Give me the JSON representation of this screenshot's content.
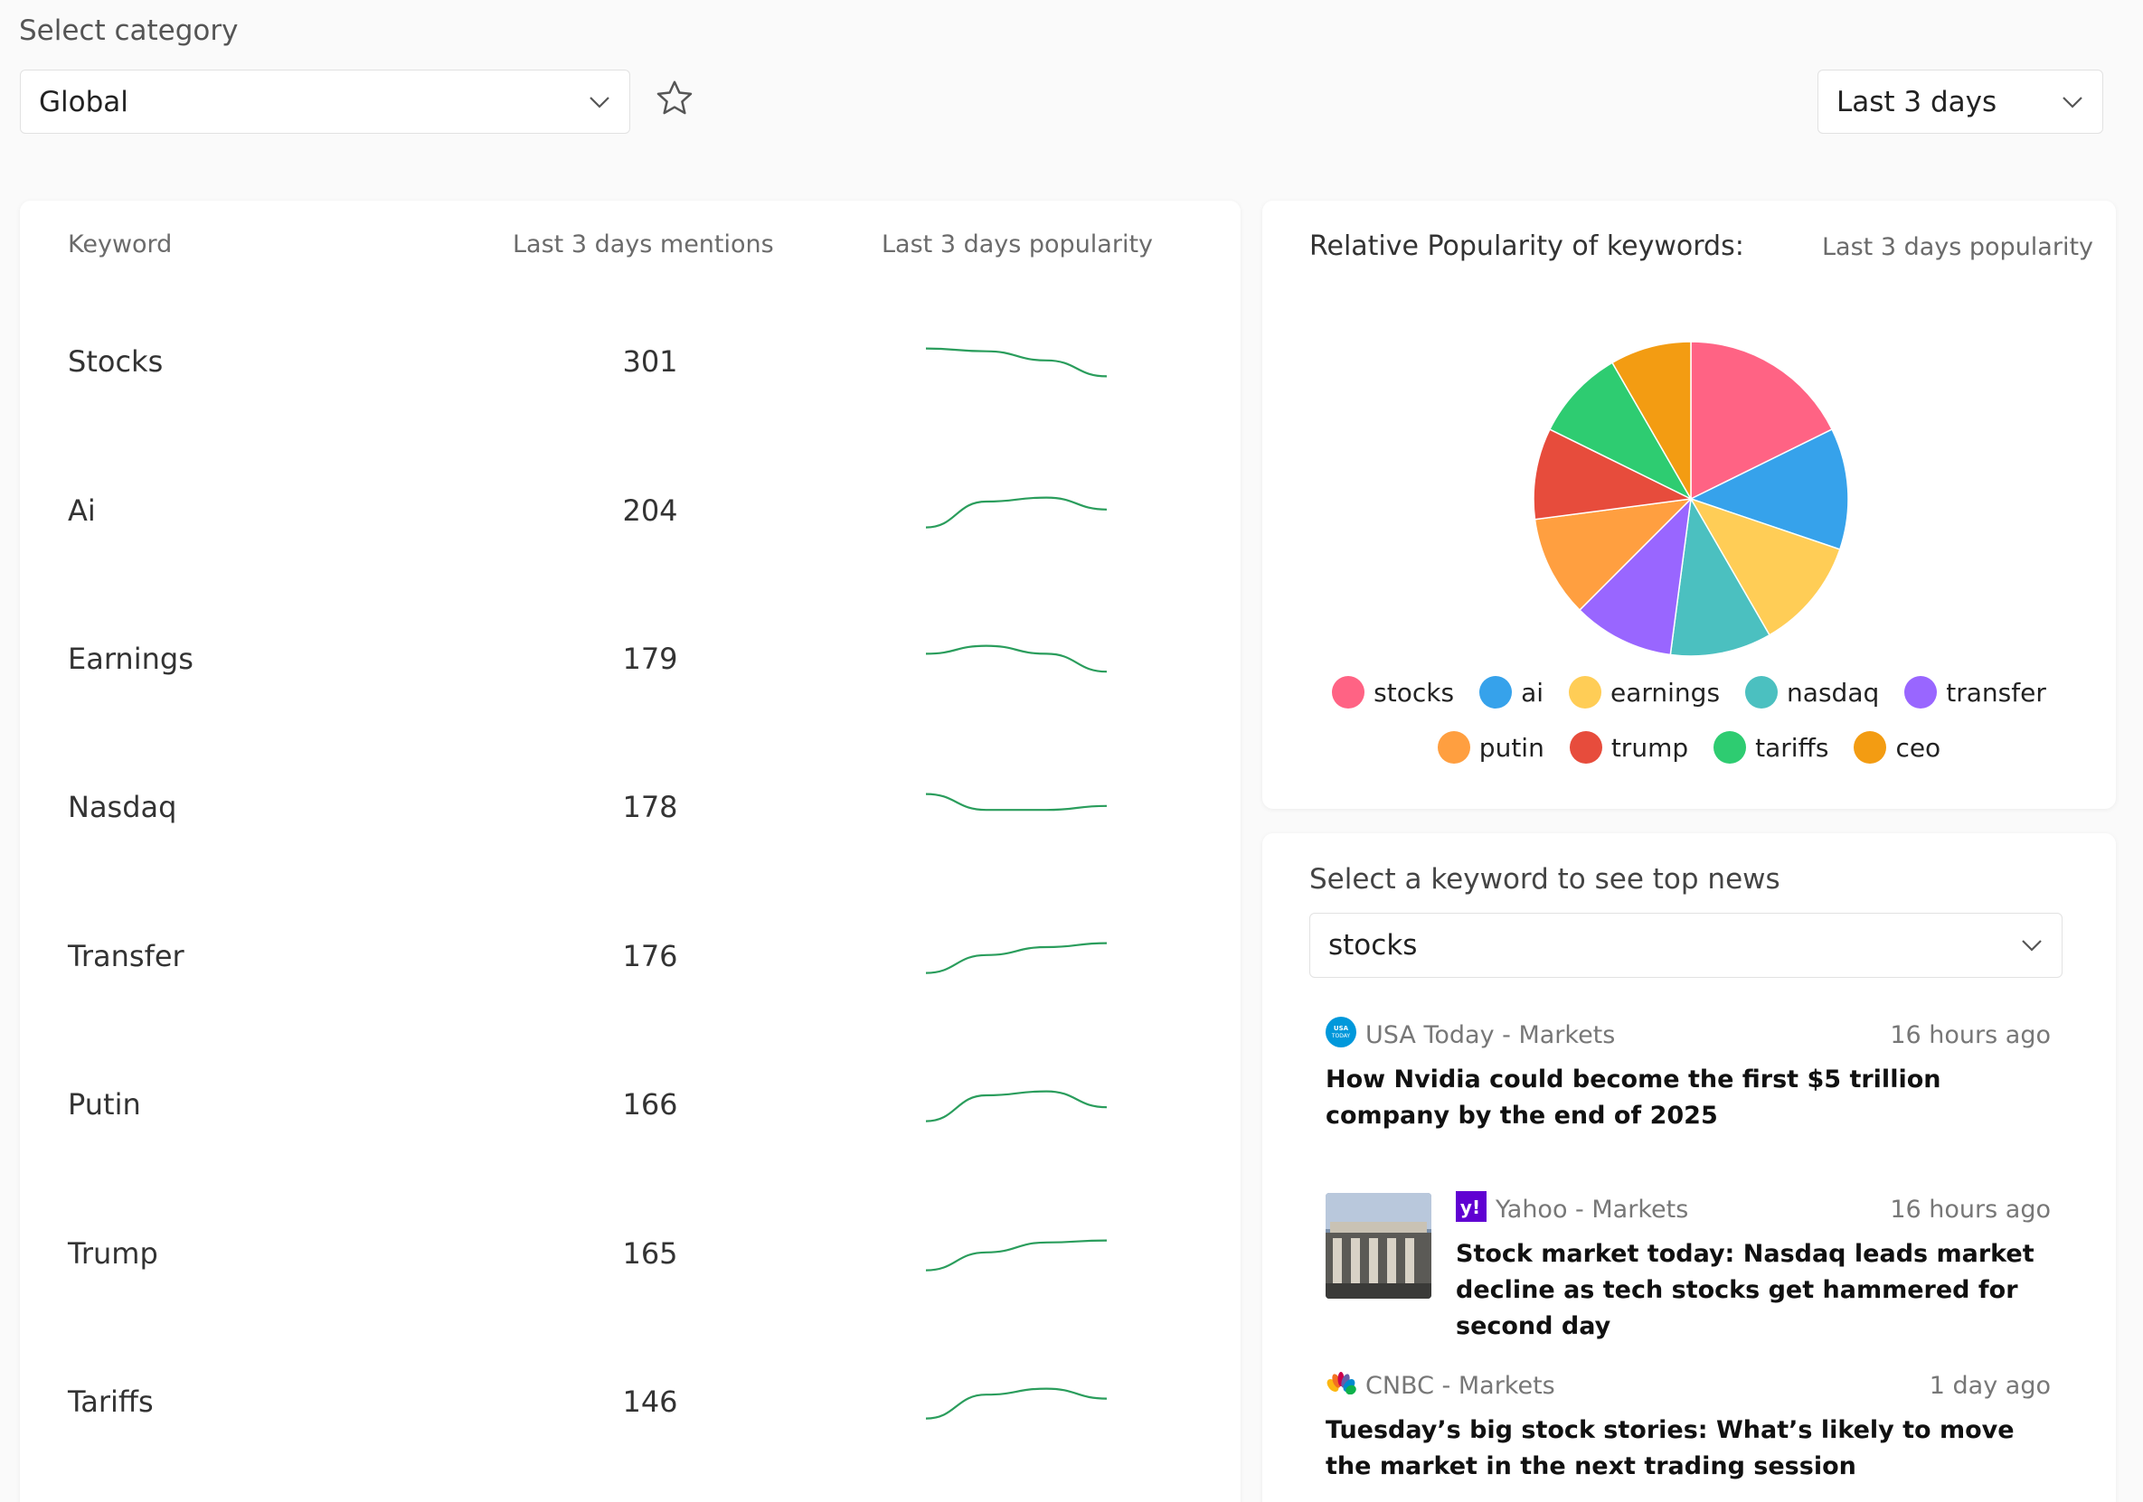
{
  "header": {
    "category_label": "Select category",
    "category_value": "Global",
    "range_value": "Last 3 days"
  },
  "table": {
    "col_keyword": "Keyword",
    "col_mentions": "Last 3 days mentions",
    "col_popularity": "Last 3 days popularity",
    "rows": [
      {
        "keyword": "Stocks",
        "mentions": "301",
        "trend": [
          0.85,
          0.78,
          0.55,
          0.15
        ]
      },
      {
        "keyword": "Ai",
        "mentions": "204",
        "trend": [
          0.1,
          0.75,
          0.85,
          0.55
        ]
      },
      {
        "keyword": "Earnings",
        "mentions": "179",
        "trend": [
          0.65,
          0.85,
          0.65,
          0.2
        ]
      },
      {
        "keyword": "Nasdaq",
        "mentions": "178",
        "trend": [
          0.85,
          0.45,
          0.45,
          0.55
        ]
      },
      {
        "keyword": "Transfer",
        "mentions": "176",
        "trend": [
          0.1,
          0.55,
          0.75,
          0.85
        ]
      },
      {
        "keyword": "Putin",
        "mentions": "166",
        "trend": [
          0.1,
          0.75,
          0.85,
          0.45
        ]
      },
      {
        "keyword": "Trump",
        "mentions": "165",
        "trend": [
          0.1,
          0.55,
          0.8,
          0.85
        ]
      },
      {
        "keyword": "Tariffs",
        "mentions": "146",
        "trend": [
          0.1,
          0.7,
          0.85,
          0.6
        ]
      }
    ]
  },
  "pie": {
    "title": "Relative Popularity of keywords:",
    "subtitle": "Last 3 days popularity"
  },
  "chart_data": {
    "type": "pie",
    "title": "Relative Popularity of keywords:",
    "categories": [
      "stocks",
      "ai",
      "earnings",
      "nasdaq",
      "transfer",
      "putin",
      "trump",
      "tariffs",
      "ceo"
    ],
    "values": [
      17,
      12,
      11,
      10,
      10,
      10,
      9,
      9,
      8
    ],
    "colors": [
      "#ff6384",
      "#36a2eb",
      "#ffcd56",
      "#4bc0c0",
      "#9966ff",
      "#ff9f40",
      "#e74c3c",
      "#2ecc71",
      "#f39c12"
    ],
    "legend": "bottom"
  },
  "news": {
    "prompt": "Select a keyword to see top news",
    "keyword_value": "stocks",
    "items": [
      {
        "source": "USA Today - Markets",
        "time": "16 hours ago",
        "title": "How Nvidia could become the first $5 trillion company by the end of 2025",
        "icon": "usa-today-logo"
      },
      {
        "source": "Yahoo - Markets",
        "time": "16 hours ago",
        "title": "Stock market today: Nasdaq leads market decline as tech stocks get hammered for second day",
        "icon": "yahoo-logo"
      },
      {
        "source": "CNBC - Markets",
        "time": "1 day ago",
        "title": "Tuesday’s big stock stories: What’s likely to move the market in the next trading session",
        "icon": "cnbc-logo"
      }
    ]
  }
}
